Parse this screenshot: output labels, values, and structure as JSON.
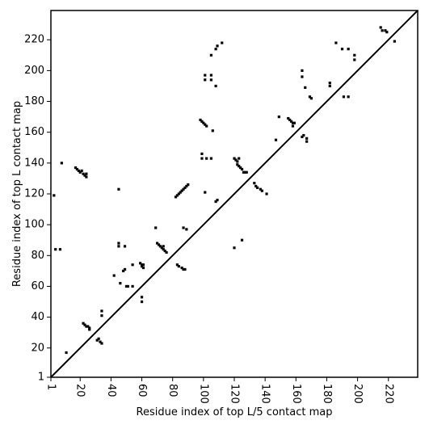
{
  "chart_data": {
    "type": "scatter",
    "xlabel": "Residue index of top L/5 contact map",
    "ylabel": "Residue index of top L contact map",
    "xlim": [
      1,
      239
    ],
    "ylim": [
      1,
      239
    ],
    "x_ticks": [
      1,
      20,
      40,
      60,
      80,
      100,
      120,
      140,
      160,
      180,
      200,
      220
    ],
    "y_ticks": [
      1,
      20,
      40,
      60,
      80,
      100,
      120,
      140,
      160,
      180,
      200,
      220
    ],
    "diagonal": true,
    "grid": false,
    "colors": {
      "points": "#000000",
      "diagonal": "#000000",
      "frame": "#000000"
    },
    "series": [
      {
        "points": [
          [
            3,
            119
          ],
          [
            4,
            84
          ],
          [
            7,
            84
          ],
          [
            8,
            140
          ],
          [
            11,
            17
          ],
          [
            17,
            137
          ],
          [
            18,
            136
          ],
          [
            19,
            135
          ],
          [
            20,
            134
          ],
          [
            21,
            135
          ],
          [
            22,
            133
          ],
          [
            23,
            132
          ],
          [
            24,
            133
          ],
          [
            24,
            131
          ],
          [
            22,
            36
          ],
          [
            23,
            35
          ],
          [
            24,
            34
          ],
          [
            25,
            34
          ],
          [
            26,
            33
          ],
          [
            26,
            32
          ],
          [
            31,
            25
          ],
          [
            32,
            26
          ],
          [
            33,
            24
          ],
          [
            34,
            23
          ],
          [
            34,
            41
          ],
          [
            34,
            44
          ],
          [
            42,
            67
          ],
          [
            45,
            86
          ],
          [
            45,
            88
          ],
          [
            45,
            123
          ],
          [
            46,
            62
          ],
          [
            48,
            70
          ],
          [
            49,
            86
          ],
          [
            49,
            71
          ],
          [
            50,
            60
          ],
          [
            51,
            60
          ],
          [
            54,
            60
          ],
          [
            54,
            74
          ],
          [
            59,
            75
          ],
          [
            60,
            73
          ],
          [
            60,
            74
          ],
          [
            61,
            74
          ],
          [
            61,
            72
          ],
          [
            60,
            53
          ],
          [
            60,
            50
          ],
          [
            69,
            98
          ],
          [
            70,
            88
          ],
          [
            71,
            87
          ],
          [
            72,
            86
          ],
          [
            73,
            85
          ],
          [
            74,
            84
          ],
          [
            74,
            86
          ],
          [
            75,
            83
          ],
          [
            76,
            82
          ],
          [
            82,
            118
          ],
          [
            83,
            119
          ],
          [
            84,
            120
          ],
          [
            85,
            121
          ],
          [
            86,
            122
          ],
          [
            87,
            123
          ],
          [
            88,
            124
          ],
          [
            89,
            125
          ],
          [
            90,
            126
          ],
          [
            83,
            74
          ],
          [
            84,
            73
          ],
          [
            86,
            72
          ],
          [
            87,
            71
          ],
          [
            88,
            71
          ],
          [
            87,
            98
          ],
          [
            89,
            97
          ],
          [
            98,
            168
          ],
          [
            99,
            167
          ],
          [
            100,
            166
          ],
          [
            101,
            165
          ],
          [
            102,
            164
          ],
          [
            99,
            146
          ],
          [
            99,
            143
          ],
          [
            102,
            143
          ],
          [
            105,
            143
          ],
          [
            101,
            121
          ],
          [
            101,
            197
          ],
          [
            101,
            194
          ],
          [
            105,
            197
          ],
          [
            105,
            194
          ],
          [
            105,
            210
          ],
          [
            106,
            161
          ],
          [
            108,
            190
          ],
          [
            108,
            214
          ],
          [
            109,
            216
          ],
          [
            112,
            218
          ],
          [
            108,
            115
          ],
          [
            109,
            116
          ],
          [
            120,
            143
          ],
          [
            121,
            142
          ],
          [
            122,
            141
          ],
          [
            122,
            139
          ],
          [
            123,
            138
          ],
          [
            124,
            137
          ],
          [
            125,
            136
          ],
          [
            126,
            134
          ],
          [
            127,
            134
          ],
          [
            128,
            134
          ],
          [
            123,
            143
          ],
          [
            120,
            85
          ],
          [
            125,
            90
          ],
          [
            133,
            127
          ],
          [
            134,
            125
          ],
          [
            135,
            124
          ],
          [
            137,
            123
          ],
          [
            138,
            122
          ],
          [
            141,
            120
          ],
          [
            147,
            155
          ],
          [
            149,
            170
          ],
          [
            155,
            169
          ],
          [
            156,
            168
          ],
          [
            157,
            167
          ],
          [
            158,
            166
          ],
          [
            158,
            164
          ],
          [
            159,
            166
          ],
          [
            164,
            157
          ],
          [
            165,
            158
          ],
          [
            164,
            200
          ],
          [
            164,
            196
          ],
          [
            166,
            189
          ],
          [
            167,
            156
          ],
          [
            167,
            154
          ],
          [
            169,
            183
          ],
          [
            170,
            182
          ],
          [
            182,
            192
          ],
          [
            182,
            190
          ],
          [
            186,
            218
          ],
          [
            190,
            214
          ],
          [
            191,
            183
          ],
          [
            194,
            214
          ],
          [
            194,
            183
          ],
          [
            198,
            210
          ],
          [
            198,
            207
          ],
          [
            215,
            228
          ],
          [
            216,
            226
          ],
          [
            218,
            226
          ],
          [
            219,
            225
          ],
          [
            224,
            219
          ]
        ]
      }
    ]
  }
}
